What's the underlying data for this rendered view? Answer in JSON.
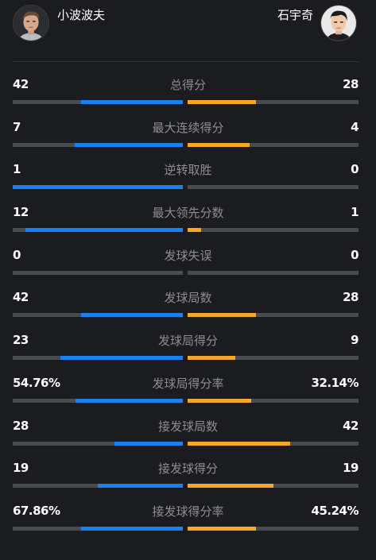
{
  "players": {
    "left": {
      "name": "小波波夫"
    },
    "right": {
      "name": "石宇奇"
    }
  },
  "colors": {
    "background": "#1b1c20",
    "track": "#4a4b50",
    "left_fill": "#1a82ef",
    "right_fill": "#f6a823",
    "label": "#8c8d92"
  },
  "stats": [
    {
      "label": "总得分",
      "left": "42",
      "right": "28",
      "left_share": 0.6,
      "right_share": 0.4
    },
    {
      "label": "最大连续得分",
      "left": "7",
      "right": "4",
      "left_share": 0.6364,
      "right_share": 0.3636
    },
    {
      "label": "逆转取胜",
      "left": "1",
      "right": "0",
      "left_share": 1.0,
      "right_share": 0.0
    },
    {
      "label": "最大领先分数",
      "left": "12",
      "right": "1",
      "left_share": 0.9231,
      "right_share": 0.0769
    },
    {
      "label": "发球失误",
      "left": "0",
      "right": "0",
      "left_share": 0.0,
      "right_share": 0.0
    },
    {
      "label": "发球局数",
      "left": "42",
      "right": "28",
      "left_share": 0.6,
      "right_share": 0.4
    },
    {
      "label": "发球局得分",
      "left": "23",
      "right": "9",
      "left_share": 0.7188,
      "right_share": 0.2812
    },
    {
      "label": "发球局得分率",
      "left": "54.76%",
      "right": "32.14%",
      "left_share": 0.6301,
      "right_share": 0.3699
    },
    {
      "label": "接发球局数",
      "left": "28",
      "right": "42",
      "left_share": 0.4,
      "right_share": 0.6
    },
    {
      "label": "接发球得分",
      "left": "19",
      "right": "19",
      "left_share": 0.5,
      "right_share": 0.5
    },
    {
      "label": "接发球得分率",
      "left": "67.86%",
      "right": "45.24%",
      "left_share": 0.6,
      "right_share": 0.4
    }
  ]
}
